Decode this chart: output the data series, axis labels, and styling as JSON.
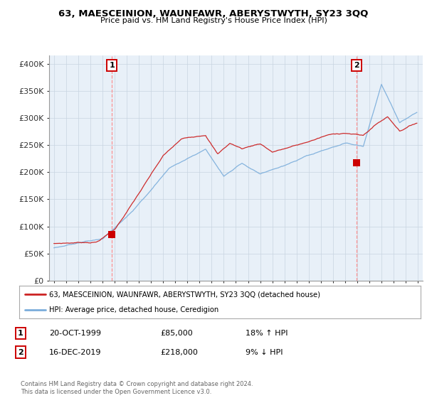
{
  "title": "63, MAESCEINION, WAUNFAWR, ABERYSTWYTH, SY23 3QQ",
  "subtitle": "Price paid vs. HM Land Registry's House Price Index (HPI)",
  "ylabel_ticks": [
    "£0",
    "£50K",
    "£100K",
    "£150K",
    "£200K",
    "£250K",
    "£300K",
    "£350K",
    "£400K"
  ],
  "ytick_values": [
    0,
    50000,
    100000,
    150000,
    200000,
    250000,
    300000,
    350000,
    400000
  ],
  "ylim": [
    0,
    415000
  ],
  "xlim_start": 1994.6,
  "xlim_end": 2025.4,
  "sale1_year": 1999.79,
  "sale1_y": 85000,
  "sale2_year": 2019.96,
  "sale2_y": 218000,
  "red_color": "#cc0000",
  "red_line_color": "#cc2222",
  "blue_color": "#7aaddb",
  "blue_fill_color": "#ddeeff",
  "dashed_color": "#ff8888",
  "bg_plot_color": "#e8f0f8",
  "legend_line1": "63, MAESCEINION, WAUNFAWR, ABERYSTWYTH, SY23 3QQ (detached house)",
  "legend_line2": "HPI: Average price, detached house, Ceredigion",
  "annotation1_date": "20-OCT-1999",
  "annotation1_price": "£85,000",
  "annotation1_hpi": "18% ↑ HPI",
  "annotation2_date": "16-DEC-2019",
  "annotation2_price": "£218,000",
  "annotation2_hpi": "9% ↓ HPI",
  "footer": "Contains HM Land Registry data © Crown copyright and database right 2024.\nThis data is licensed under the Open Government Licence v3.0.",
  "background_color": "#ffffff",
  "grid_color": "#c8d4e0"
}
